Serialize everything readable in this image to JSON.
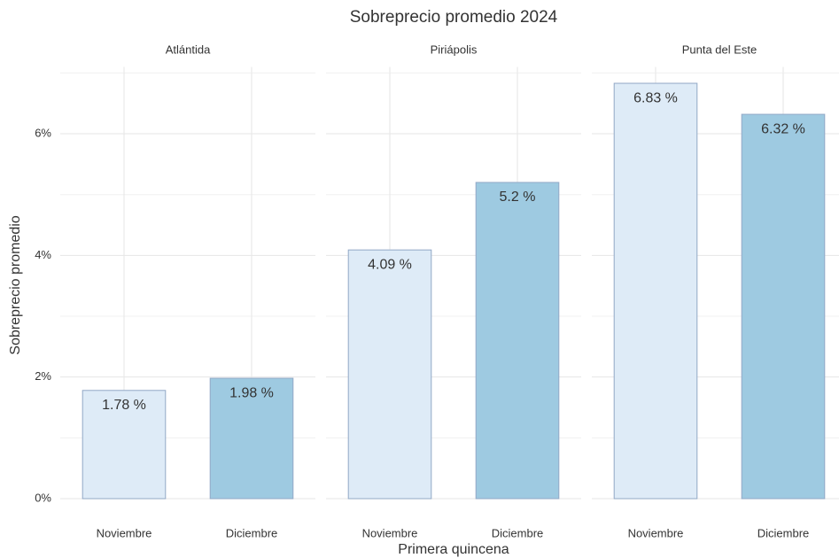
{
  "chart_data": {
    "type": "bar",
    "title": "Sobreprecio promedio 2024",
    "x_label": "Primera quincena",
    "y_label": "Sobreprecio promedio",
    "categories": [
      "Noviembre",
      "Diciembre"
    ],
    "colors": [
      "#deebf7",
      "#9ecae1"
    ],
    "facets": [
      {
        "title": "Atlántida",
        "values": [
          1.78,
          1.98
        ],
        "value_labels": [
          "1.78 %",
          "1.98 %"
        ]
      },
      {
        "title": "Piriápolis",
        "values": [
          4.09,
          5.2
        ],
        "value_labels": [
          "4.09 %",
          "5.2 %"
        ]
      },
      {
        "title": "Punta del Este",
        "values": [
          6.83,
          6.32
        ],
        "value_labels": [
          "6.83 %",
          "6.32 %"
        ]
      }
    ],
    "ylim": [
      0,
      7.1
    ],
    "yticks": [
      {
        "value": 0,
        "label": "0%"
      },
      {
        "value": 2,
        "label": "2%"
      },
      {
        "value": 4,
        "label": "4%"
      },
      {
        "value": 6,
        "label": "6%"
      }
    ],
    "grid": true
  }
}
